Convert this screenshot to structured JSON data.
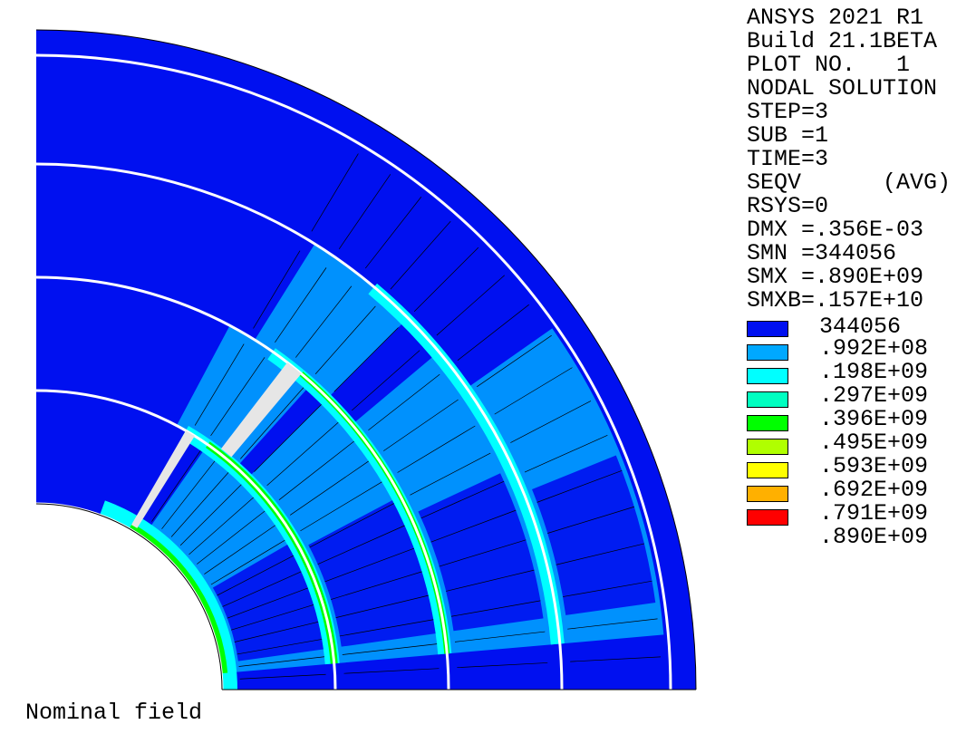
{
  "info": {
    "lines": [
      "ANSYS 2021 R1",
      "Build 21.1BETA",
      "PLOT NO.   1",
      "NODAL SOLUTION",
      "STEP=3",
      "SUB =1",
      "TIME=3",
      "SEQV      (AVG)",
      "RSYS=0",
      "DMX =.356E-03",
      "SMN =344056",
      "SMX =.890E+09",
      "SMXB=.157E+10"
    ]
  },
  "legend": {
    "min_label": "344056",
    "entries": [
      {
        "color": "#0010f0",
        "label": ".992E+08"
      },
      {
        "color": "#00a8ff",
        "label": ".198E+09"
      },
      {
        "color": "#00ffff",
        "label": ".297E+09"
      },
      {
        "color": "#00ffc0",
        "label": ".396E+09"
      },
      {
        "color": "#00ff00",
        "label": ".495E+09"
      },
      {
        "color": "#b0ff00",
        "label": ".593E+09"
      },
      {
        "color": "#ffff00",
        "label": ".692E+09"
      },
      {
        "color": "#ffb000",
        "label": ".791E+09"
      },
      {
        "color": "#ff0000",
        "label": ".890E+09"
      }
    ]
  },
  "caption": "Nominal field",
  "colors": {
    "dark_blue": "#0010f0",
    "light_blue": "#00a8ff",
    "cyan": "#00ffff",
    "green": "#00ff00",
    "gap": "#e6e6e6"
  }
}
